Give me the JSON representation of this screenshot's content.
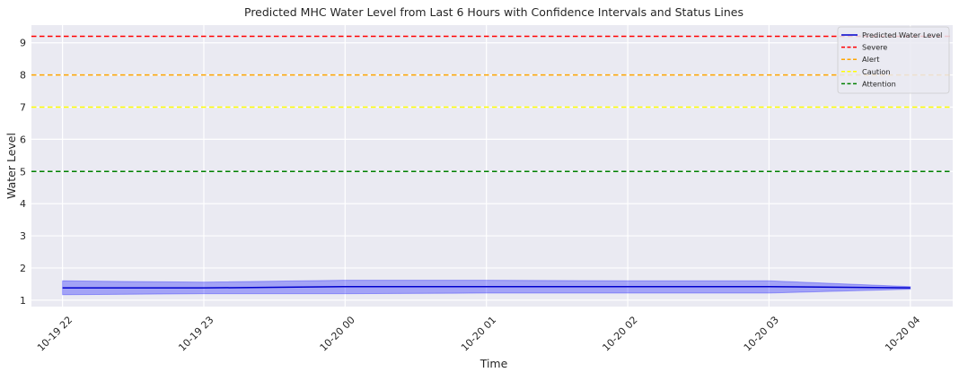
{
  "chart_data": {
    "type": "line",
    "title": "Predicted MHC Water Level from Last 6 Hours with Confidence Intervals and Status Lines",
    "xlabel": "Time",
    "ylabel": "Water Level",
    "x_ticks": [
      "10-19 22",
      "10-19 23",
      "10-20 00",
      "10-20 01",
      "10-20 02",
      "10-20 03",
      "10-20 04"
    ],
    "xlim": [
      -0.22,
      6.3
    ],
    "ylim": [
      0.8,
      9.55
    ],
    "y_ticks": [
      1,
      2,
      3,
      4,
      5,
      6,
      7,
      8,
      9
    ],
    "grid": true,
    "legend_position": "top-right",
    "series": [
      {
        "name": "Predicted Water Level",
        "color": "#0000cd",
        "x": [
          0,
          1,
          2,
          3,
          4,
          5,
          6
        ],
        "values": [
          1.38,
          1.38,
          1.42,
          1.42,
          1.42,
          1.42,
          1.38
        ]
      }
    ],
    "confidence_interval": {
      "color": "#0000ff",
      "x": [
        0,
        1,
        2,
        3,
        4,
        5,
        6
      ],
      "lower": [
        1.17,
        1.2,
        1.2,
        1.22,
        1.22,
        1.22,
        1.34
      ],
      "upper": [
        1.6,
        1.56,
        1.62,
        1.62,
        1.6,
        1.6,
        1.42
      ]
    },
    "status_lines": [
      {
        "name": "Severe",
        "value": 9.2,
        "color": "#ff0000"
      },
      {
        "name": "Alert",
        "value": 8.0,
        "color": "#ffa500"
      },
      {
        "name": "Caution",
        "value": 7.0,
        "color": "#ffff00"
      },
      {
        "name": "Attention",
        "value": 5.0,
        "color": "#008000"
      }
    ]
  }
}
